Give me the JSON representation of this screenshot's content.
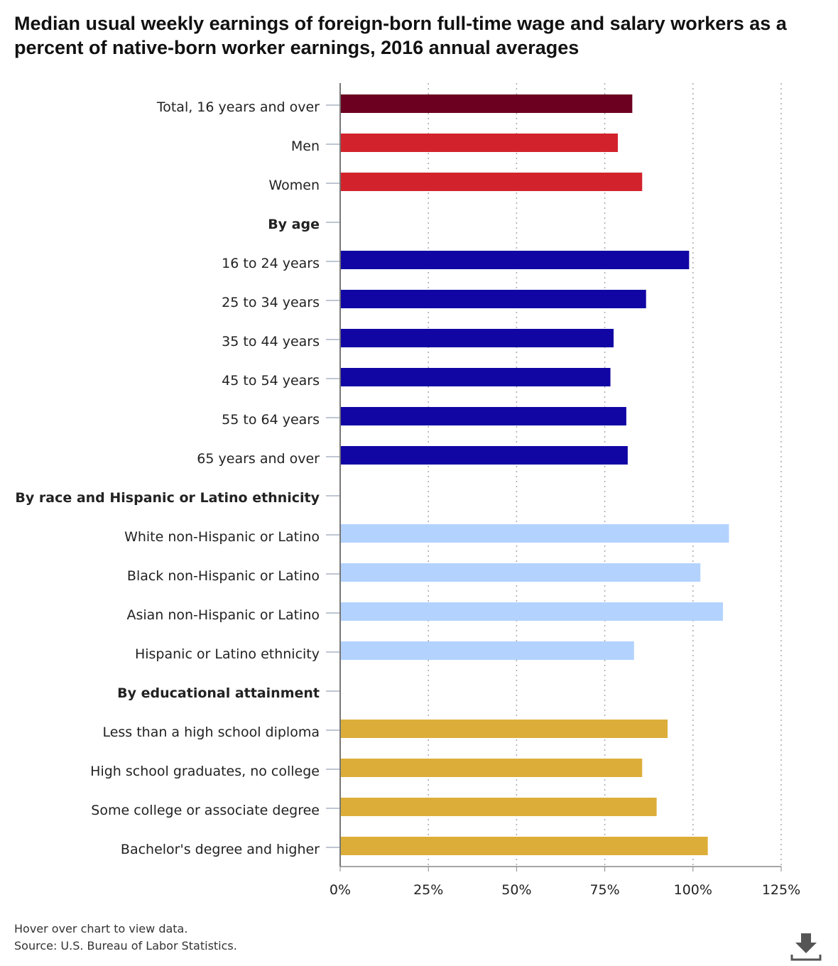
{
  "chart_data": {
    "type": "bar",
    "orientation": "horizontal",
    "title": "Median usual weekly earnings of foreign-born full-time wage and salary workers as a percent of native-born worker earnings, 2016 annual averages",
    "xlim": [
      0,
      125
    ],
    "x_ticks": [
      {
        "value": 0,
        "label": "0%"
      },
      {
        "value": 25,
        "label": "25%"
      },
      {
        "value": 50,
        "label": "50%"
      },
      {
        "value": 75,
        "label": "75%"
      },
      {
        "value": 100,
        "label": "100%"
      },
      {
        "value": 125,
        "label": "125%"
      }
    ],
    "grid": "vertical dotted",
    "categories": [
      {
        "label": "Total, 16 years and over",
        "value": 82.8,
        "color": "#6b0020",
        "header": false
      },
      {
        "label": "Men",
        "value": 78.7,
        "color": "#d2232c",
        "header": false
      },
      {
        "label": "Women",
        "value": 85.6,
        "color": "#d2232c",
        "header": false
      },
      {
        "label": "By age",
        "value": null,
        "header": true
      },
      {
        "label": "16 to 24 years",
        "value": 98.9,
        "color": "#1105a4",
        "header": false
      },
      {
        "label": "25 to 34 years",
        "value": 86.7,
        "color": "#1105a4",
        "header": false
      },
      {
        "label": "35 to 44 years",
        "value": 77.5,
        "color": "#1105a4",
        "header": false
      },
      {
        "label": "45 to 54 years",
        "value": 76.6,
        "color": "#1105a4",
        "header": false
      },
      {
        "label": "55 to 64 years",
        "value": 81.1,
        "color": "#1105a4",
        "header": false
      },
      {
        "label": "65 years and over",
        "value": 81.5,
        "color": "#1105a4",
        "header": false
      },
      {
        "label": "By race and Hispanic or Latino ethnicity",
        "value": null,
        "header": true
      },
      {
        "label": "White non-Hispanic or Latino",
        "value": 110.2,
        "color": "#b3d3fe",
        "header": false
      },
      {
        "label": "Black non-Hispanic or Latino",
        "value": 102.1,
        "color": "#b3d3fe",
        "header": false
      },
      {
        "label": "Asian non-Hispanic or Latino",
        "value": 108.5,
        "color": "#b3d3fe",
        "header": false
      },
      {
        "label": "Hispanic or Latino ethnicity",
        "value": 83.3,
        "color": "#b3d3fe",
        "header": false
      },
      {
        "label": "By educational attainment",
        "value": null,
        "header": true
      },
      {
        "label": "Less than a high school diploma",
        "value": 92.8,
        "color": "#dcae39",
        "header": false
      },
      {
        "label": "High school graduates, no college",
        "value": 85.6,
        "color": "#dcae39",
        "header": false
      },
      {
        "label": "Some college or associate degree",
        "value": 89.7,
        "color": "#dcae39",
        "header": false
      },
      {
        "label": "Bachelor's degree and higher",
        "value": 104.2,
        "color": "#dcae39",
        "header": false
      }
    ]
  },
  "footer": {
    "hover_note": "Hover over chart to view data.",
    "source": "Source: U.S. Bureau of Labor Statistics."
  },
  "download": {
    "icon": "download-icon"
  }
}
